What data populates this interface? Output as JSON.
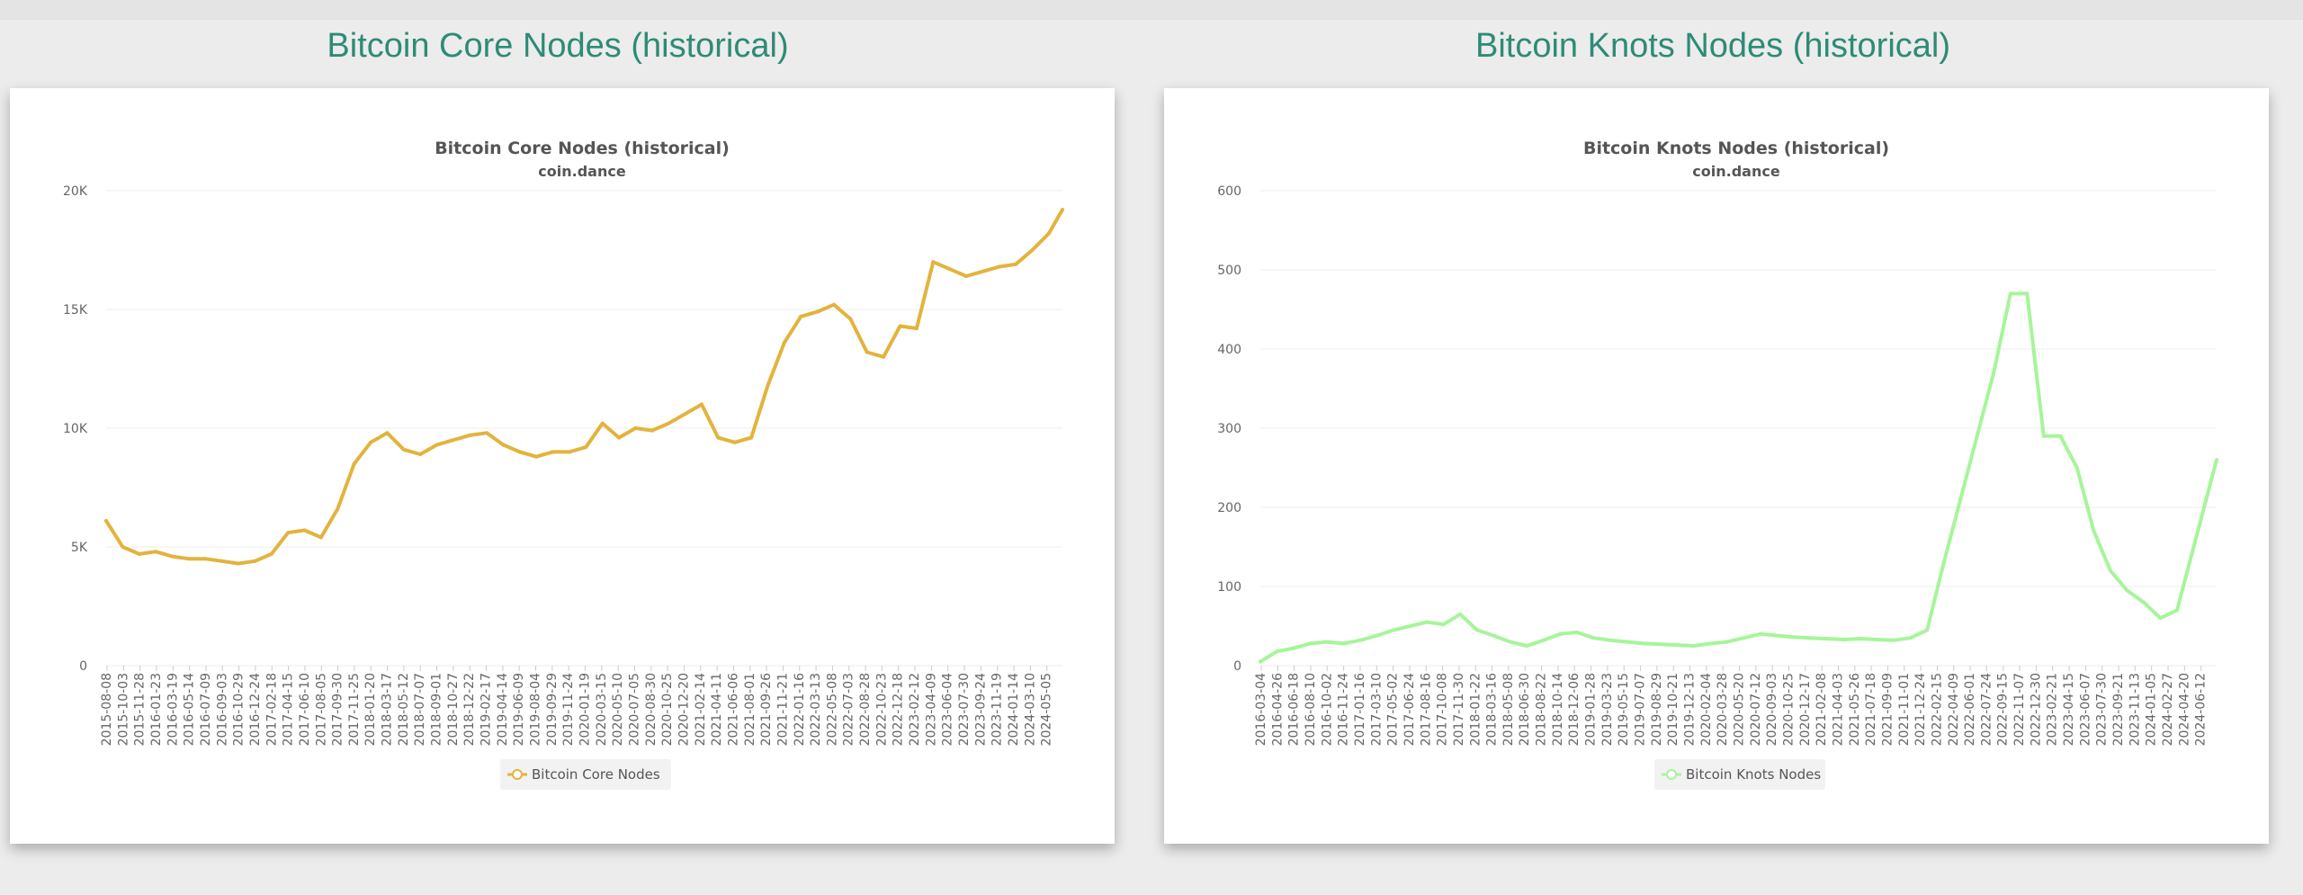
{
  "headings": [
    "Bitcoin Core Nodes (historical)",
    "Bitcoin Knots Nodes (historical)"
  ],
  "chart_data": [
    {
      "type": "line",
      "title": "Bitcoin Core Nodes (historical)",
      "subtitle": "coin.dance",
      "xlabel": "",
      "ylabel": "",
      "ylim": [
        0,
        20000
      ],
      "yticks": [
        "0",
        "5K",
        "10K",
        "15K",
        "20K"
      ],
      "ytick_values": [
        0,
        5000,
        10000,
        15000,
        20000
      ],
      "grid": true,
      "legend_position": "bottom-center",
      "color": "#e3b33d",
      "x_tick_labels": [
        "2015-08-08",
        "2015-10-03",
        "2015-11-28",
        "2016-01-23",
        "2016-03-19",
        "2016-05-14",
        "2016-07-09",
        "2016-09-03",
        "2016-10-29",
        "2016-12-24",
        "2017-02-18",
        "2017-04-15",
        "2017-06-10",
        "2017-08-05",
        "2017-09-30",
        "2017-11-25",
        "2018-01-20",
        "2018-03-17",
        "2018-05-12",
        "2018-07-07",
        "2018-09-01",
        "2018-10-27",
        "2018-12-22",
        "2019-02-17",
        "2019-04-14",
        "2019-06-09",
        "2019-08-04",
        "2019-09-29",
        "2019-11-24",
        "2020-01-19",
        "2020-03-15",
        "2020-05-10",
        "2020-07-05",
        "2020-08-30",
        "2020-10-25",
        "2020-12-20",
        "2021-02-14",
        "2021-04-11",
        "2021-06-06",
        "2021-08-01",
        "2021-09-26",
        "2021-11-21",
        "2022-01-16",
        "2022-03-13",
        "2022-05-08",
        "2022-07-03",
        "2022-08-28",
        "2022-10-23",
        "2022-12-18",
        "2023-02-12",
        "2023-04-09",
        "2023-06-04",
        "2023-07-30",
        "2023-09-24",
        "2023-11-19",
        "2024-01-14",
        "2024-03-10",
        "2024-05-05"
      ],
      "series": [
        {
          "name": "Bitcoin Core Nodes",
          "x": [
            "2015-08-08",
            "2015-10-03",
            "2015-11-28",
            "2016-01-23",
            "2016-03-19",
            "2016-05-14",
            "2016-07-09",
            "2016-09-03",
            "2016-10-29",
            "2016-12-24",
            "2017-02-18",
            "2017-04-15",
            "2017-06-10",
            "2017-08-05",
            "2017-09-30",
            "2017-11-25",
            "2018-01-20",
            "2018-03-17",
            "2018-05-12",
            "2018-07-07",
            "2018-09-01",
            "2018-10-27",
            "2018-12-22",
            "2019-02-17",
            "2019-04-14",
            "2019-06-09",
            "2019-08-04",
            "2019-09-29",
            "2019-11-24",
            "2020-01-19",
            "2020-03-15",
            "2020-05-10",
            "2020-07-05",
            "2020-08-30",
            "2020-10-25",
            "2020-12-20",
            "2021-02-14",
            "2021-04-11",
            "2021-06-06",
            "2021-08-01",
            "2021-09-26",
            "2021-11-21",
            "2022-01-16",
            "2022-03-13",
            "2022-05-08",
            "2022-07-03",
            "2022-08-28",
            "2022-10-23",
            "2022-12-18",
            "2023-02-12",
            "2023-04-09",
            "2023-06-04",
            "2023-07-30",
            "2023-09-24",
            "2023-11-19",
            "2024-01-14",
            "2024-03-10",
            "2024-05-05",
            "2024-06-20"
          ],
          "values": [
            6100,
            5000,
            4700,
            4800,
            4600,
            4500,
            4500,
            4400,
            4300,
            4400,
            4700,
            5600,
            5700,
            5400,
            6600,
            8500,
            9400,
            9800,
            9100,
            8900,
            9300,
            9500,
            9700,
            9800,
            9300,
            9000,
            8800,
            9000,
            9000,
            9200,
            10200,
            9600,
            10000,
            9900,
            10200,
            10600,
            11000,
            9600,
            9400,
            9600,
            11800,
            13600,
            14700,
            14900,
            15200,
            14600,
            13200,
            13000,
            14300,
            14200,
            17000,
            16700,
            16400,
            16600,
            16800,
            16900,
            17500,
            18200,
            19200
          ]
        }
      ]
    },
    {
      "type": "line",
      "title": "Bitcoin Knots Nodes (historical)",
      "subtitle": "coin.dance",
      "xlabel": "",
      "ylabel": "",
      "ylim": [
        0,
        600
      ],
      "yticks": [
        "0",
        "100",
        "200",
        "300",
        "400",
        "500",
        "600"
      ],
      "ytick_values": [
        0,
        100,
        200,
        300,
        400,
        500,
        600
      ],
      "grid": true,
      "legend_position": "bottom-center",
      "color": "#a6f59a",
      "x_tick_labels": [
        "2016-03-04",
        "2016-04-26",
        "2016-06-18",
        "2016-08-10",
        "2016-10-02",
        "2016-11-24",
        "2017-01-16",
        "2017-03-10",
        "2017-05-02",
        "2017-06-24",
        "2017-08-16",
        "2017-10-08",
        "2017-11-30",
        "2018-01-22",
        "2018-03-16",
        "2018-05-08",
        "2018-06-30",
        "2018-08-22",
        "2018-10-14",
        "2018-12-06",
        "2019-01-28",
        "2019-03-23",
        "2019-05-15",
        "2019-07-07",
        "2019-08-29",
        "2019-10-21",
        "2019-12-13",
        "2020-02-04",
        "2020-03-28",
        "2020-05-20",
        "2020-07-12",
        "2020-09-03",
        "2020-10-25",
        "2020-12-17",
        "2021-02-08",
        "2021-04-03",
        "2021-05-26",
        "2021-07-18",
        "2021-09-09",
        "2021-11-01",
        "2021-12-24",
        "2022-02-15",
        "2022-04-09",
        "2022-06-01",
        "2022-07-24",
        "2022-09-15",
        "2022-11-07",
        "2022-12-30",
        "2023-02-21",
        "2023-04-15",
        "2023-06-07",
        "2023-07-30",
        "2023-09-21",
        "2023-11-13",
        "2024-01-05",
        "2024-02-27",
        "2024-04-20",
        "2024-06-12"
      ],
      "series": [
        {
          "name": "Bitcoin Knots Nodes",
          "x": [
            "2016-03-04",
            "2016-04-26",
            "2016-06-18",
            "2016-08-10",
            "2016-10-02",
            "2016-11-24",
            "2017-01-16",
            "2017-03-10",
            "2017-05-02",
            "2017-06-24",
            "2017-08-16",
            "2017-10-08",
            "2017-11-30",
            "2018-01-22",
            "2018-03-16",
            "2018-05-08",
            "2018-06-30",
            "2018-08-22",
            "2018-10-14",
            "2018-12-06",
            "2019-01-28",
            "2019-03-23",
            "2019-05-15",
            "2019-07-07",
            "2019-08-29",
            "2019-10-21",
            "2019-12-13",
            "2020-02-04",
            "2020-03-28",
            "2020-05-20",
            "2020-07-12",
            "2020-09-03",
            "2020-10-25",
            "2020-12-17",
            "2021-02-08",
            "2021-04-03",
            "2021-05-26",
            "2021-07-18",
            "2021-09-09",
            "2021-11-01",
            "2021-12-24",
            "2022-02-15",
            "2022-04-09",
            "2022-06-01",
            "2022-07-24",
            "2022-09-15",
            "2022-11-07",
            "2022-12-30",
            "2023-02-21",
            "2023-04-15",
            "2023-06-07",
            "2023-07-30",
            "2023-09-21",
            "2023-11-13",
            "2024-01-05",
            "2024-02-27",
            "2024-04-20",
            "2024-06-12",
            "2024-07-02"
          ],
          "values": [
            5,
            18,
            22,
            28,
            30,
            28,
            32,
            38,
            45,
            50,
            55,
            52,
            65,
            45,
            38,
            30,
            25,
            32,
            40,
            42,
            35,
            32,
            30,
            28,
            27,
            26,
            25,
            28,
            30,
            35,
            40,
            38,
            36,
            35,
            34,
            33,
            34,
            33,
            32,
            35,
            45,
            130,
            210,
            290,
            370,
            470,
            470,
            290,
            290,
            250,
            170,
            120,
            95,
            80,
            60,
            70,
            150,
            230,
            260
          ]
        }
      ]
    }
  ]
}
